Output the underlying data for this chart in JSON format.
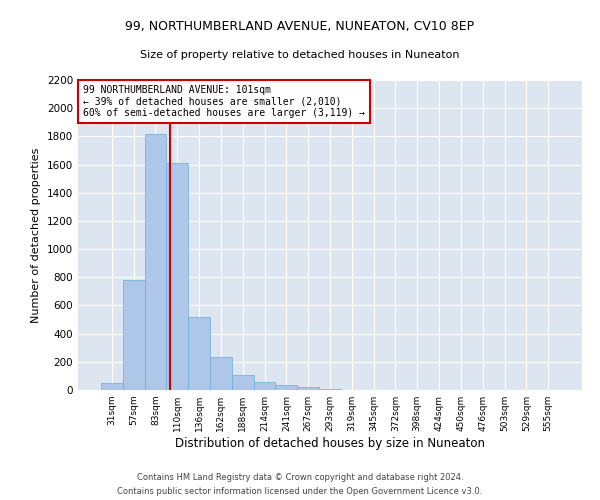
{
  "title1": "99, NORTHUMBERLAND AVENUE, NUNEATON, CV10 8EP",
  "title2": "Size of property relative to detached houses in Nuneaton",
  "xlabel": "Distribution of detached houses by size in Nuneaton",
  "ylabel": "Number of detached properties",
  "footer1": "Contains HM Land Registry data © Crown copyright and database right 2024.",
  "footer2": "Contains public sector information licensed under the Open Government Licence v3.0.",
  "bar_labels": [
    "31sqm",
    "57sqm",
    "83sqm",
    "110sqm",
    "136sqm",
    "162sqm",
    "188sqm",
    "214sqm",
    "241sqm",
    "267sqm",
    "293sqm",
    "319sqm",
    "345sqm",
    "372sqm",
    "398sqm",
    "424sqm",
    "450sqm",
    "476sqm",
    "503sqm",
    "529sqm",
    "555sqm"
  ],
  "bar_values": [
    50,
    780,
    1820,
    1610,
    520,
    235,
    110,
    55,
    35,
    20,
    10,
    0,
    0,
    0,
    0,
    0,
    0,
    0,
    0,
    0,
    0
  ],
  "bar_color": "#aec6e8",
  "bar_edge_color": "#6aaed6",
  "bg_color": "#dde6f0",
  "grid_color": "#ffffff",
  "vline_color": "#cc0000",
  "annotation_text": "99 NORTHUMBERLAND AVENUE: 101sqm\n← 39% of detached houses are smaller (2,010)\n60% of semi-detached houses are larger (3,119) →",
  "annotation_box_color": "#cc0000",
  "ylim": [
    0,
    2200
  ],
  "yticks": [
    0,
    200,
    400,
    600,
    800,
    1000,
    1200,
    1400,
    1600,
    1800,
    2000,
    2200
  ],
  "vline_x": 2.67
}
